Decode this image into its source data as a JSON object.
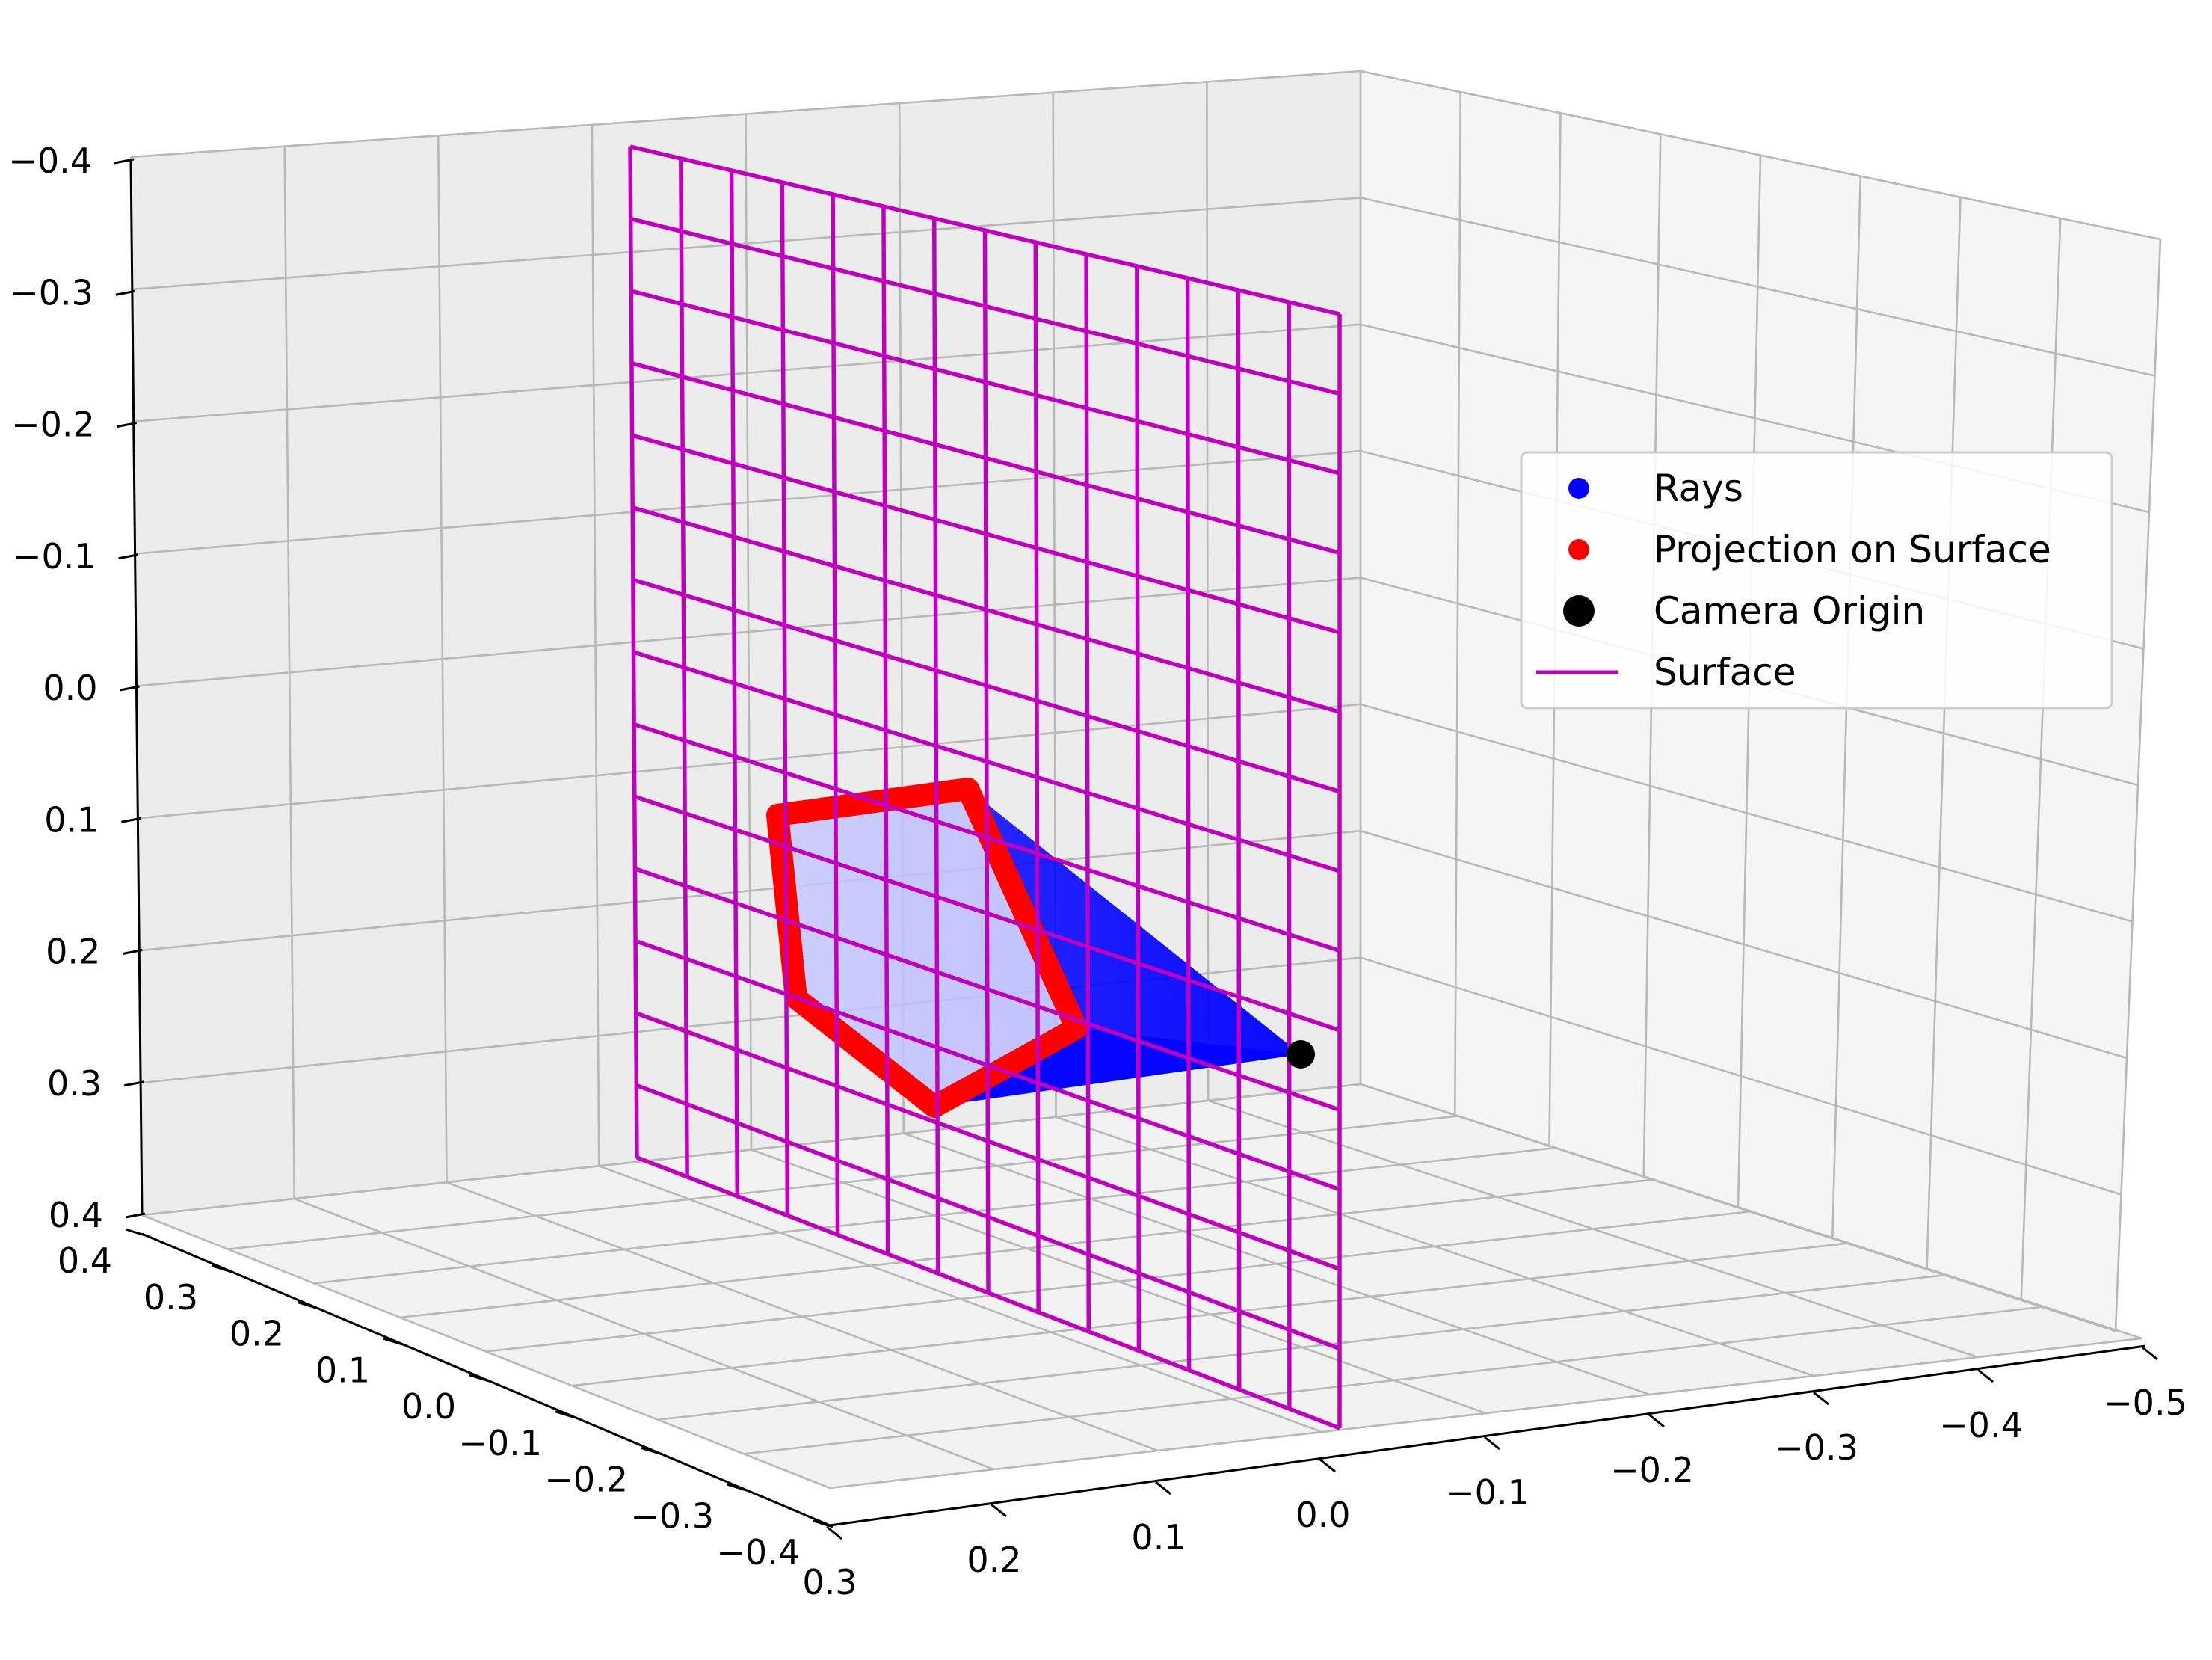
{
  "chart_data": {
    "type": "scatter",
    "title": "",
    "axes": {
      "x": {
        "label": "",
        "ticks": [
          "0.3",
          "0.2",
          "0.1",
          "0.0",
          "−0.1",
          "−0.2",
          "−0.3",
          "−0.4",
          "−0.5"
        ]
      },
      "y": {
        "label": "",
        "ticks": [
          "−0.4",
          "−0.3",
          "−0.2",
          "−0.1",
          "0.0",
          "0.1",
          "0.2",
          "0.3",
          "0.4"
        ]
      },
      "z": {
        "label": "",
        "ticks": [
          "−0.4",
          "−0.3",
          "−0.2",
          "−0.1",
          "0.0",
          "0.1",
          "0.2",
          "0.3",
          "0.4"
        ]
      }
    },
    "grid": true,
    "legend": {
      "placement": "right",
      "entries": [
        {
          "label": "Rays",
          "marker": "dot",
          "color": "#0000ff"
        },
        {
          "label": "Projection on Surface",
          "marker": "dot",
          "color": "#ff0000"
        },
        {
          "label": "Camera Origin",
          "marker": "large-dot",
          "color": "#000000"
        },
        {
          "label": "Surface",
          "marker": "line",
          "color": "#bf00bf"
        }
      ]
    },
    "surface": {
      "name": "Surface",
      "color": "#bf00bf",
      "rows": 14,
      "cols": 14
    },
    "projection_outline": {
      "name": "Projection on Surface",
      "color": "#ff0000",
      "vertex_count": 6
    },
    "rays": {
      "name": "Rays",
      "color": "#0000ff"
    },
    "camera_origin": {
      "name": "Camera Origin",
      "color": "#000000"
    }
  }
}
